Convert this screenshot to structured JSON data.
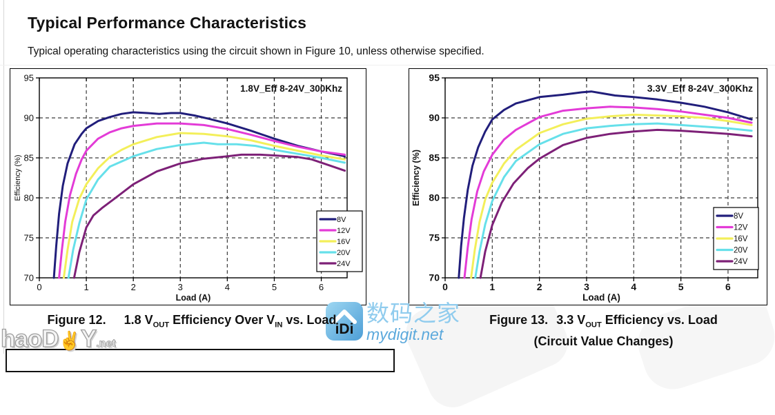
{
  "page": {
    "title": "Typical Performance Characteristics",
    "subtitle": "Typical operating characteristics using the circuit shown in Figure 10, unless otherwise specified."
  },
  "chart_data": [
    {
      "type": "line",
      "title": "1.8V_Eff 8-24V_300Khz",
      "xlabel": "Load (A)",
      "ylabel": "Efficiency (%)",
      "xlim": [
        0,
        6.55
      ],
      "ylim": [
        70,
        95
      ],
      "xticks": [
        0,
        1,
        2,
        3,
        4,
        5,
        6
      ],
      "yticks": [
        70,
        75,
        80,
        85,
        90,
        95
      ],
      "grid": "dashed",
      "legend_position": "inside-right-lower",
      "series": [
        {
          "name": "8V",
          "color": "#211e7b",
          "points": [
            [
              0.31,
              70
            ],
            [
              0.36,
              74
            ],
            [
              0.42,
              78
            ],
            [
              0.5,
              81.5
            ],
            [
              0.6,
              84.3
            ],
            [
              0.75,
              86.7
            ],
            [
              0.9,
              88.0
            ],
            [
              1,
              88.7
            ],
            [
              1.25,
              89.6
            ],
            [
              1.5,
              90.1
            ],
            [
              1.75,
              90.5
            ],
            [
              2,
              90.7
            ],
            [
              2.3,
              90.6
            ],
            [
              2.55,
              90.5
            ],
            [
              2.8,
              90.6
            ],
            [
              3,
              90.6
            ],
            [
              3.3,
              90.3
            ],
            [
              3.6,
              89.9
            ],
            [
              4,
              89.3
            ],
            [
              4.5,
              88.4
            ],
            [
              5,
              87.4
            ],
            [
              5.5,
              86.5
            ],
            [
              6,
              85.8
            ],
            [
              6.5,
              85.2
            ]
          ]
        },
        {
          "name": "12V",
          "color": "#e33bd7",
          "points": [
            [
              0.42,
              70
            ],
            [
              0.48,
              73.5
            ],
            [
              0.55,
              77
            ],
            [
              0.65,
              80.3
            ],
            [
              0.78,
              83
            ],
            [
              0.9,
              84.8
            ],
            [
              1,
              85.9
            ],
            [
              1.25,
              87.4
            ],
            [
              1.5,
              88.2
            ],
            [
              1.75,
              88.7
            ],
            [
              2,
              89.0
            ],
            [
              2.5,
              89.3
            ],
            [
              3,
              89.3
            ],
            [
              3.5,
              89.1
            ],
            [
              4,
              88.6
            ],
            [
              4.5,
              87.9
            ],
            [
              5,
              87.1
            ],
            [
              5.5,
              86.4
            ],
            [
              6,
              85.8
            ],
            [
              6.5,
              85.4
            ]
          ]
        },
        {
          "name": "16V",
          "color": "#f3ef5a",
          "points": [
            [
              0.52,
              70
            ],
            [
              0.6,
              73.5
            ],
            [
              0.7,
              77
            ],
            [
              0.85,
              79.9
            ],
            [
              1,
              81.7
            ],
            [
              1.25,
              83.7
            ],
            [
              1.5,
              85.1
            ],
            [
              1.75,
              86.0
            ],
            [
              2,
              86.7
            ],
            [
              2.5,
              87.6
            ],
            [
              3,
              88.1
            ],
            [
              3.5,
              88.0
            ],
            [
              4,
              87.7
            ],
            [
              4.5,
              87.2
            ],
            [
              5,
              86.5
            ],
            [
              5.5,
              85.9
            ],
            [
              6,
              85.3
            ],
            [
              6.5,
              84.8
            ]
          ]
        },
        {
          "name": "20V",
          "color": "#66e0ea",
          "points": [
            [
              0.62,
              70
            ],
            [
              0.72,
              73.5
            ],
            [
              0.85,
              76.8
            ],
            [
              1,
              79.8
            ],
            [
              1.25,
              82.3
            ],
            [
              1.5,
              83.9
            ],
            [
              2,
              85.2
            ],
            [
              2.5,
              86.1
            ],
            [
              3,
              86.6
            ],
            [
              3.5,
              86.9
            ],
            [
              3.8,
              86.7
            ],
            [
              4.2,
              86.7
            ],
            [
              4.6,
              86.5
            ],
            [
              5,
              86.0
            ],
            [
              5.5,
              85.5
            ],
            [
              6,
              85.0
            ],
            [
              6.5,
              84.4
            ]
          ]
        },
        {
          "name": "24V",
          "color": "#7d2077",
          "points": [
            [
              0.74,
              70
            ],
            [
              0.85,
              73.2
            ],
            [
              1,
              76.3
            ],
            [
              1.15,
              77.8
            ],
            [
              1.35,
              78.8
            ],
            [
              1.6,
              79.9
            ],
            [
              2,
              81.7
            ],
            [
              2.5,
              83.3
            ],
            [
              3,
              84.3
            ],
            [
              3.5,
              84.9
            ],
            [
              4,
              85.2
            ],
            [
              4.3,
              85.4
            ],
            [
              4.7,
              85.4
            ],
            [
              5,
              85.3
            ],
            [
              5.5,
              85.1
            ],
            [
              5.8,
              84.8
            ],
            [
              6.2,
              84.0
            ],
            [
              6.5,
              83.4
            ]
          ]
        }
      ]
    },
    {
      "type": "line",
      "title": "3.3V_Eff 8-24V_300Khz",
      "xlabel": "Load (A)",
      "ylabel": "Efficiency (%)",
      "xlim": [
        0,
        6.63
      ],
      "ylim": [
        70,
        95
      ],
      "xticks": [
        0,
        1,
        2,
        3,
        4,
        5,
        6
      ],
      "yticks": [
        70,
        75,
        80,
        85,
        90,
        95
      ],
      "grid": "dashed",
      "legend_position": "inside-right-lower",
      "series": [
        {
          "name": "8V",
          "color": "#211e7b",
          "points": [
            [
              0.29,
              70
            ],
            [
              0.34,
              74
            ],
            [
              0.4,
              77.5
            ],
            [
              0.48,
              81
            ],
            [
              0.58,
              84
            ],
            [
              0.7,
              86.3
            ],
            [
              0.85,
              88.3
            ],
            [
              1,
              89.8
            ],
            [
              1.25,
              91.0
            ],
            [
              1.5,
              91.8
            ],
            [
              2,
              92.6
            ],
            [
              2.5,
              92.9
            ],
            [
              2.9,
              93.2
            ],
            [
              3.1,
              93.3
            ],
            [
              3.3,
              93.1
            ],
            [
              3.6,
              92.8
            ],
            [
              4,
              92.6
            ],
            [
              4.5,
              92.3
            ],
            [
              5,
              91.9
            ],
            [
              5.5,
              91.4
            ],
            [
              6,
              90.7
            ],
            [
              6.5,
              89.8
            ]
          ]
        },
        {
          "name": "12V",
          "color": "#e33bd7",
          "points": [
            [
              0.41,
              70
            ],
            [
              0.48,
              73.8
            ],
            [
              0.56,
              77.3
            ],
            [
              0.68,
              80.8
            ],
            [
              0.82,
              83.3
            ],
            [
              1,
              85.4
            ],
            [
              1.25,
              87.3
            ],
            [
              1.5,
              88.5
            ],
            [
              2,
              90.1
            ],
            [
              2.5,
              90.9
            ],
            [
              3,
              91.2
            ],
            [
              3.5,
              91.4
            ],
            [
              4,
              91.3
            ],
            [
              4.5,
              91.1
            ],
            [
              5,
              90.8
            ],
            [
              5.5,
              90.4
            ],
            [
              6,
              90.0
            ],
            [
              6.5,
              89.4
            ]
          ]
        },
        {
          "name": "16V",
          "color": "#f3ef5a",
          "points": [
            [
              0.55,
              70
            ],
            [
              0.63,
              73.5
            ],
            [
              0.73,
              77
            ],
            [
              0.85,
              79.8
            ],
            [
              1,
              81.9
            ],
            [
              1.25,
              84.3
            ],
            [
              1.5,
              86.0
            ],
            [
              2,
              88.1
            ],
            [
              2.5,
              89.2
            ],
            [
              3,
              89.9
            ],
            [
              3.5,
              90.2
            ],
            [
              4,
              90.4
            ],
            [
              4.5,
              90.3
            ],
            [
              5,
              90.2
            ],
            [
              5.5,
              90.0
            ],
            [
              6,
              89.6
            ],
            [
              6.5,
              89.1
            ]
          ]
        },
        {
          "name": "20V",
          "color": "#66e0ea",
          "points": [
            [
              0.64,
              70
            ],
            [
              0.73,
              73.3
            ],
            [
              0.85,
              76.7
            ],
            [
              1,
              79.6
            ],
            [
              1.25,
              82.6
            ],
            [
              1.5,
              84.6
            ],
            [
              2,
              86.7
            ],
            [
              2.5,
              88.0
            ],
            [
              3,
              88.7
            ],
            [
              3.5,
              89.0
            ],
            [
              4,
              89.2
            ],
            [
              4.5,
              89.3
            ],
            [
              5,
              89.1
            ],
            [
              5.5,
              88.9
            ],
            [
              6,
              88.7
            ],
            [
              6.5,
              88.4
            ]
          ]
        },
        {
          "name": "24V",
          "color": "#7d2077",
          "points": [
            [
              0.75,
              70
            ],
            [
              0.85,
              73.3
            ],
            [
              1,
              76.6
            ],
            [
              1.2,
              79.4
            ],
            [
              1.45,
              81.8
            ],
            [
              1.75,
              83.7
            ],
            [
              2,
              84.9
            ],
            [
              2.5,
              86.6
            ],
            [
              3,
              87.5
            ],
            [
              3.5,
              88.0
            ],
            [
              4,
              88.3
            ],
            [
              4.5,
              88.5
            ],
            [
              5,
              88.4
            ],
            [
              5.5,
              88.2
            ],
            [
              6,
              88.0
            ],
            [
              6.5,
              87.7
            ]
          ]
        }
      ]
    }
  ],
  "captions": {
    "figure12": {
      "lines": [
        [
          {
            "text": "Figure 12."
          },
          {
            "gap": 26
          },
          {
            "text": "1.8 V"
          },
          {
            "sub": "OUT"
          },
          {
            "text": " Efficiency Over V"
          },
          {
            "sub": "IN"
          },
          {
            "text": " vs. Load"
          }
        ]
      ]
    },
    "figure13": {
      "lines": [
        [
          {
            "text": "Figure 13."
          },
          {
            "gap": 12
          },
          {
            "text": "3.3 V"
          },
          {
            "sub": "OUT"
          },
          {
            "text": " Efficiency vs. Load"
          }
        ],
        [
          {
            "text": "(Circuit Value Changes)"
          }
        ]
      ]
    }
  },
  "watermarks": {
    "haody": {
      "prefix": "haoD",
      "hand": "✌",
      "suffix": "Y",
      "tld": ".net"
    },
    "mydigit": {
      "logo_text": "iDi",
      "name_cn": "数码之家",
      "domain": "mydigit.net"
    }
  },
  "colors": {
    "accent_blue_light": "#90ccee",
    "accent_blue": "#5ca9dc",
    "grid": "#3a3a3a"
  }
}
